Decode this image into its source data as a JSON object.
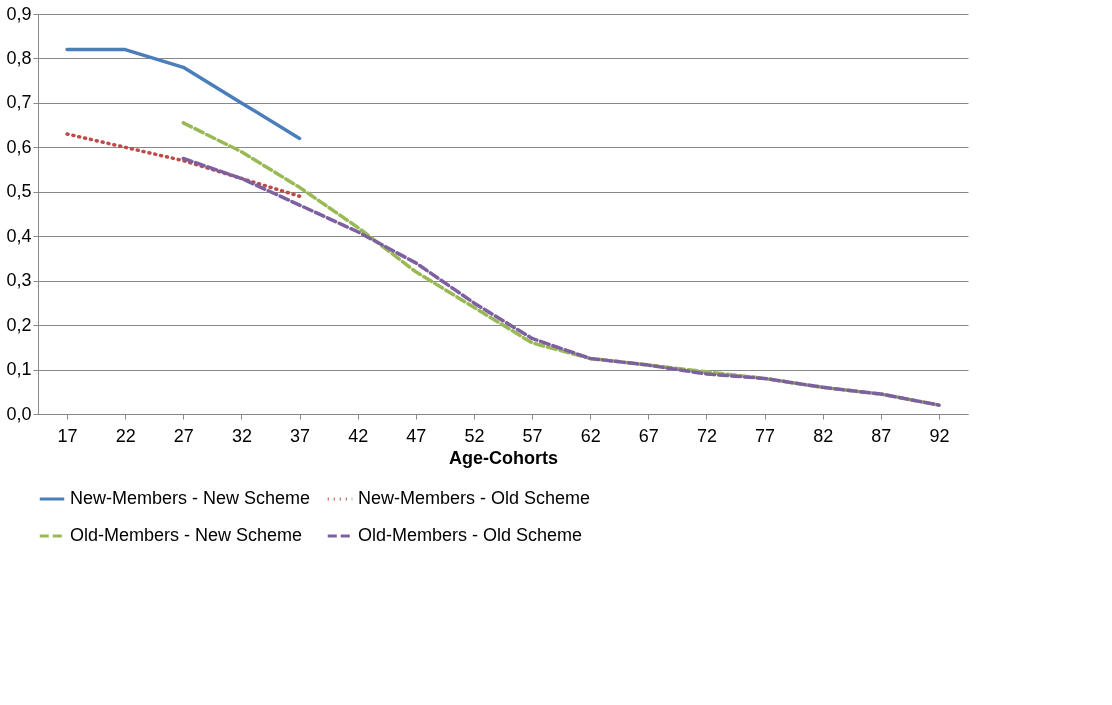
{
  "chart_data": {
    "type": "line",
    "xlabel": "Age-Cohorts",
    "categories": [
      "17",
      "22",
      "27",
      "32",
      "37",
      "42",
      "47",
      "52",
      "57",
      "62",
      "67",
      "72",
      "77",
      "82",
      "87",
      "92"
    ],
    "series": [
      {
        "name": "New-Members - New Scheme",
        "color": "#4a7ebb",
        "line_style": "solid",
        "values": [
          0.82,
          0.82,
          0.78,
          0.7,
          0.62,
          null,
          null,
          null,
          null,
          null,
          null,
          null,
          null,
          null,
          null,
          null
        ]
      },
      {
        "name": "New-Members - Old Scheme",
        "color": "#be4b48",
        "line_style": "dotted",
        "values": [
          0.63,
          0.6,
          0.57,
          0.53,
          0.49,
          null,
          null,
          null,
          null,
          null,
          null,
          null,
          null,
          null,
          null,
          null
        ]
      },
      {
        "name": "Old-Members - New Scheme",
        "color": "#98b954",
        "line_style": "dashed",
        "values": [
          null,
          null,
          0.655,
          0.59,
          0.51,
          0.42,
          0.32,
          0.24,
          0.16,
          0.125,
          0.11,
          0.095,
          0.08,
          0.06,
          0.045,
          0.02
        ]
      },
      {
        "name": "Old-Members - Old Scheme",
        "color": "#7d60a0",
        "line_style": "dashed",
        "values": [
          null,
          null,
          0.575,
          0.53,
          0.47,
          0.41,
          0.34,
          0.25,
          0.17,
          0.125,
          0.11,
          0.09,
          0.08,
          0.06,
          0.045,
          0.02
        ]
      }
    ],
    "ylim": [
      0,
      0.9
    ],
    "yticks": [
      {
        "value": 0,
        "label": "0,0"
      },
      {
        "value": 0.1,
        "label": "0,1"
      },
      {
        "value": 0.2,
        "label": "0,2"
      },
      {
        "value": 0.3,
        "label": "0,3"
      },
      {
        "value": 0.4,
        "label": "0,4"
      },
      {
        "value": 0.5,
        "label": "0,5"
      },
      {
        "value": 0.6,
        "label": "0,6"
      },
      {
        "value": 0.7,
        "label": "0,7"
      },
      {
        "value": 0.8,
        "label": "0,8"
      },
      {
        "value": 0.9,
        "label": "0,9"
      }
    ],
    "grid": "y",
    "legend": "bottom",
    "marker": "none"
  }
}
